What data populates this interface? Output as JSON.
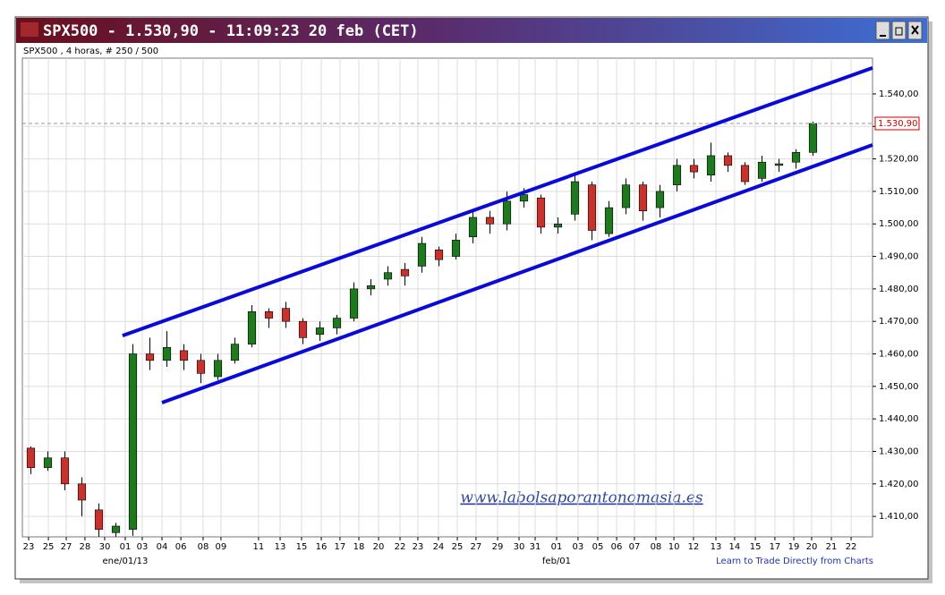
{
  "window": {
    "title": "SPX500 - 1.530,90 - 11:09:23  20 feb (CET)",
    "watermark": "www.labolsaporantonomasia.es",
    "footer": "Learn to Trade Directly from Charts"
  },
  "chart_data": {
    "type": "candlestick",
    "subtitle": "SPX500 , 4 horas, # 250 / 500",
    "x": [
      0.5,
      1.5,
      2.5,
      3.5,
      4.5,
      5.5,
      6.5,
      7.5,
      8.5,
      9.5,
      10.5,
      11.5,
      12.5,
      13.5,
      14.5,
      15.5,
      16.5,
      17.5,
      18.5,
      19.5,
      20.5,
      21.5,
      22.5,
      23.5,
      24.5,
      25.5,
      26.5,
      27.5,
      28.5,
      29.5,
      30.5,
      31.5,
      32.5,
      33.5,
      34.5,
      35.5,
      36.5,
      37.5,
      38.5,
      39.5,
      40.5,
      41.5,
      42.5,
      43.5,
      44.5,
      45.5,
      46.5
    ],
    "open": [
      1431,
      1425,
      1428,
      1420,
      1412,
      1405,
      1406,
      1460,
      1458,
      1461,
      1458,
      1453,
      1458,
      1463,
      1473,
      1474,
      1470,
      1466,
      1468,
      1471,
      1480,
      1483,
      1486,
      1487,
      1492,
      1490,
      1496,
      1502,
      1500,
      1507,
      1508,
      1499,
      1503,
      1512,
      1497,
      1505,
      1512,
      1505,
      1512,
      1518,
      1515,
      1521,
      1518,
      1514,
      1518,
      1519,
      1522
    ],
    "high": [
      1431.5,
      1430,
      1430,
      1422,
      1414,
      1408,
      1463,
      1465,
      1467,
      1463,
      1460,
      1460,
      1465,
      1475,
      1474,
      1476,
      1471,
      1470,
      1472,
      1482,
      1483,
      1487,
      1488,
      1496,
      1493,
      1497,
      1504,
      1504,
      1510,
      1511,
      1509,
      1502,
      1515,
      1513,
      1507,
      1514,
      1513,
      1512,
      1520,
      1520,
      1525,
      1522,
      1519,
      1521,
      1520,
      1523,
      1531.5
    ],
    "low": [
      1423,
      1424,
      1418,
      1410,
      1400,
      1398,
      1404,
      1455,
      1456,
      1455,
      1451,
      1452,
      1457,
      1462,
      1468,
      1468,
      1463,
      1464,
      1466,
      1470,
      1478,
      1481,
      1481,
      1485,
      1487,
      1489,
      1494,
      1497,
      1498,
      1505,
      1497,
      1497,
      1501,
      1495,
      1496,
      1503,
      1501,
      1502,
      1510,
      1514,
      1513,
      1516,
      1512,
      1513,
      1516,
      1517,
      1521
    ],
    "close": [
      1425,
      1428,
      1420,
      1415,
      1406,
      1407,
      1460,
      1458,
      1462,
      1458,
      1454,
      1458,
      1463,
      1473,
      1471,
      1470,
      1465,
      1468,
      1471,
      1480,
      1481,
      1485,
      1484,
      1494,
      1489,
      1495,
      1502,
      1500,
      1507,
      1509,
      1499,
      1500,
      1513,
      1498,
      1505,
      1512,
      1504,
      1510,
      1518,
      1516,
      1521,
      1518,
      1513,
      1519,
      1518.5,
      1522,
      1530.9
    ],
    "up_color": "#1f7a1f",
    "down_color": "#c8322c",
    "xlim": [
      0,
      50
    ],
    "ylim": [
      1403.7,
      1551
    ],
    "xticks": [
      {
        "value": 0.37,
        "label": "23"
      },
      {
        "value": 1.53,
        "label": "25"
      },
      {
        "value": 2.58,
        "label": "27"
      },
      {
        "value": 3.68,
        "label": "28"
      },
      {
        "value": 4.84,
        "label": "30"
      },
      {
        "value": 6.05,
        "label": "01"
      },
      {
        "value": 7.05,
        "label": "03"
      },
      {
        "value": 8.21,
        "label": "04"
      },
      {
        "value": 9.32,
        "label": "06"
      },
      {
        "value": 10.63,
        "label": "08"
      },
      {
        "value": 11.68,
        "label": "09"
      },
      {
        "value": 13.89,
        "label": "11"
      },
      {
        "value": 15.16,
        "label": "13"
      },
      {
        "value": 16.42,
        "label": "15"
      },
      {
        "value": 17.58,
        "label": "16"
      },
      {
        "value": 18.68,
        "label": "17"
      },
      {
        "value": 19.79,
        "label": "18"
      },
      {
        "value": 20.95,
        "label": "20"
      },
      {
        "value": 22.21,
        "label": "22"
      },
      {
        "value": 23.26,
        "label": "23"
      },
      {
        "value": 24.47,
        "label": "24"
      },
      {
        "value": 25.58,
        "label": "25"
      },
      {
        "value": 26.68,
        "label": "27"
      },
      {
        "value": 27.95,
        "label": "29"
      },
      {
        "value": 29.21,
        "label": "30"
      },
      {
        "value": 30.16,
        "label": "31"
      },
      {
        "value": 31.42,
        "label": "01"
      },
      {
        "value": 32.68,
        "label": "03"
      },
      {
        "value": 33.84,
        "label": "05"
      },
      {
        "value": 34.95,
        "label": "06"
      },
      {
        "value": 36.0,
        "label": "07"
      },
      {
        "value": 37.26,
        "label": "08"
      },
      {
        "value": 38.32,
        "label": "10"
      },
      {
        "value": 39.47,
        "label": "12"
      },
      {
        "value": 40.79,
        "label": "13"
      },
      {
        "value": 41.89,
        "label": "14"
      },
      {
        "value": 43.11,
        "label": "15"
      },
      {
        "value": 44.26,
        "label": "17"
      },
      {
        "value": 45.37,
        "label": "19"
      },
      {
        "value": 46.42,
        "label": "20"
      },
      {
        "value": 47.58,
        "label": "21"
      },
      {
        "value": 48.74,
        "label": "22"
      }
    ],
    "month_labels": [
      {
        "value": 6.05,
        "label": "ene/01/13"
      },
      {
        "value": 31.42,
        "label": "feb/01"
      }
    ],
    "yticks": [
      {
        "value": 1410,
        "label": "1.410,00"
      },
      {
        "value": 1420,
        "label": "1.420,00"
      },
      {
        "value": 1430,
        "label": "1.430,00"
      },
      {
        "value": 1440,
        "label": "1.440,00"
      },
      {
        "value": 1450,
        "label": "1.450,00"
      },
      {
        "value": 1460,
        "label": "1.460,00"
      },
      {
        "value": 1470,
        "label": "1.470,00"
      },
      {
        "value": 1480,
        "label": "1.480,00"
      },
      {
        "value": 1490,
        "label": "1.490,00"
      },
      {
        "value": 1500,
        "label": "1.500,00"
      },
      {
        "value": 1510,
        "label": "1.510,00"
      },
      {
        "value": 1520,
        "label": "1.520,00"
      },
      {
        "value": 1530,
        "label": "1.530,00"
      },
      {
        "value": 1540,
        "label": "1.540,00"
      }
    ],
    "last_price": {
      "value": 1530.9,
      "label": "1.530,90"
    },
    "trendlines": [
      {
        "x": [
          5.89,
          50
        ],
        "y": [
          1465.6,
          1548.0
        ]
      },
      {
        "x": [
          8.21,
          50
        ],
        "y": [
          1445.0,
          1524.3
        ]
      }
    ],
    "trendline_color": "#0a0ad8",
    "grid": true
  }
}
